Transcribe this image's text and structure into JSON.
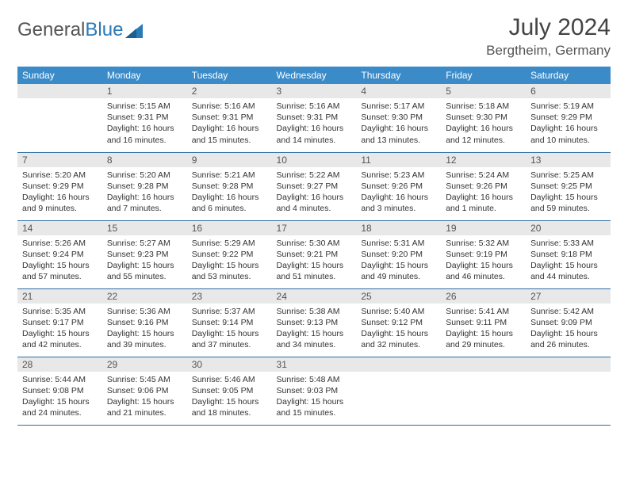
{
  "brand": {
    "part1": "General",
    "part2": "Blue"
  },
  "title": "July 2024",
  "location": "Bergtheim, Germany",
  "colors": {
    "header_bg": "#3b8bc9",
    "header_text": "#ffffff",
    "daynum_bg": "#e8e8e8",
    "row_border": "#2f6fa3",
    "logo_blue": "#2a7ab8"
  },
  "weekdays": [
    "Sunday",
    "Monday",
    "Tuesday",
    "Wednesday",
    "Thursday",
    "Friday",
    "Saturday"
  ],
  "weeks": [
    [
      {
        "empty": true
      },
      {
        "n": "1",
        "l1": "Sunrise: 5:15 AM",
        "l2": "Sunset: 9:31 PM",
        "l3": "Daylight: 16 hours",
        "l4": "and 16 minutes."
      },
      {
        "n": "2",
        "l1": "Sunrise: 5:16 AM",
        "l2": "Sunset: 9:31 PM",
        "l3": "Daylight: 16 hours",
        "l4": "and 15 minutes."
      },
      {
        "n": "3",
        "l1": "Sunrise: 5:16 AM",
        "l2": "Sunset: 9:31 PM",
        "l3": "Daylight: 16 hours",
        "l4": "and 14 minutes."
      },
      {
        "n": "4",
        "l1": "Sunrise: 5:17 AM",
        "l2": "Sunset: 9:30 PM",
        "l3": "Daylight: 16 hours",
        "l4": "and 13 minutes."
      },
      {
        "n": "5",
        "l1": "Sunrise: 5:18 AM",
        "l2": "Sunset: 9:30 PM",
        "l3": "Daylight: 16 hours",
        "l4": "and 12 minutes."
      },
      {
        "n": "6",
        "l1": "Sunrise: 5:19 AM",
        "l2": "Sunset: 9:29 PM",
        "l3": "Daylight: 16 hours",
        "l4": "and 10 minutes."
      }
    ],
    [
      {
        "n": "7",
        "l1": "Sunrise: 5:20 AM",
        "l2": "Sunset: 9:29 PM",
        "l3": "Daylight: 16 hours",
        "l4": "and 9 minutes."
      },
      {
        "n": "8",
        "l1": "Sunrise: 5:20 AM",
        "l2": "Sunset: 9:28 PM",
        "l3": "Daylight: 16 hours",
        "l4": "and 7 minutes."
      },
      {
        "n": "9",
        "l1": "Sunrise: 5:21 AM",
        "l2": "Sunset: 9:28 PM",
        "l3": "Daylight: 16 hours",
        "l4": "and 6 minutes."
      },
      {
        "n": "10",
        "l1": "Sunrise: 5:22 AM",
        "l2": "Sunset: 9:27 PM",
        "l3": "Daylight: 16 hours",
        "l4": "and 4 minutes."
      },
      {
        "n": "11",
        "l1": "Sunrise: 5:23 AM",
        "l2": "Sunset: 9:26 PM",
        "l3": "Daylight: 16 hours",
        "l4": "and 3 minutes."
      },
      {
        "n": "12",
        "l1": "Sunrise: 5:24 AM",
        "l2": "Sunset: 9:26 PM",
        "l3": "Daylight: 16 hours",
        "l4": "and 1 minute."
      },
      {
        "n": "13",
        "l1": "Sunrise: 5:25 AM",
        "l2": "Sunset: 9:25 PM",
        "l3": "Daylight: 15 hours",
        "l4": "and 59 minutes."
      }
    ],
    [
      {
        "n": "14",
        "l1": "Sunrise: 5:26 AM",
        "l2": "Sunset: 9:24 PM",
        "l3": "Daylight: 15 hours",
        "l4": "and 57 minutes."
      },
      {
        "n": "15",
        "l1": "Sunrise: 5:27 AM",
        "l2": "Sunset: 9:23 PM",
        "l3": "Daylight: 15 hours",
        "l4": "and 55 minutes."
      },
      {
        "n": "16",
        "l1": "Sunrise: 5:29 AM",
        "l2": "Sunset: 9:22 PM",
        "l3": "Daylight: 15 hours",
        "l4": "and 53 minutes."
      },
      {
        "n": "17",
        "l1": "Sunrise: 5:30 AM",
        "l2": "Sunset: 9:21 PM",
        "l3": "Daylight: 15 hours",
        "l4": "and 51 minutes."
      },
      {
        "n": "18",
        "l1": "Sunrise: 5:31 AM",
        "l2": "Sunset: 9:20 PM",
        "l3": "Daylight: 15 hours",
        "l4": "and 49 minutes."
      },
      {
        "n": "19",
        "l1": "Sunrise: 5:32 AM",
        "l2": "Sunset: 9:19 PM",
        "l3": "Daylight: 15 hours",
        "l4": "and 46 minutes."
      },
      {
        "n": "20",
        "l1": "Sunrise: 5:33 AM",
        "l2": "Sunset: 9:18 PM",
        "l3": "Daylight: 15 hours",
        "l4": "and 44 minutes."
      }
    ],
    [
      {
        "n": "21",
        "l1": "Sunrise: 5:35 AM",
        "l2": "Sunset: 9:17 PM",
        "l3": "Daylight: 15 hours",
        "l4": "and 42 minutes."
      },
      {
        "n": "22",
        "l1": "Sunrise: 5:36 AM",
        "l2": "Sunset: 9:16 PM",
        "l3": "Daylight: 15 hours",
        "l4": "and 39 minutes."
      },
      {
        "n": "23",
        "l1": "Sunrise: 5:37 AM",
        "l2": "Sunset: 9:14 PM",
        "l3": "Daylight: 15 hours",
        "l4": "and 37 minutes."
      },
      {
        "n": "24",
        "l1": "Sunrise: 5:38 AM",
        "l2": "Sunset: 9:13 PM",
        "l3": "Daylight: 15 hours",
        "l4": "and 34 minutes."
      },
      {
        "n": "25",
        "l1": "Sunrise: 5:40 AM",
        "l2": "Sunset: 9:12 PM",
        "l3": "Daylight: 15 hours",
        "l4": "and 32 minutes."
      },
      {
        "n": "26",
        "l1": "Sunrise: 5:41 AM",
        "l2": "Sunset: 9:11 PM",
        "l3": "Daylight: 15 hours",
        "l4": "and 29 minutes."
      },
      {
        "n": "27",
        "l1": "Sunrise: 5:42 AM",
        "l2": "Sunset: 9:09 PM",
        "l3": "Daylight: 15 hours",
        "l4": "and 26 minutes."
      }
    ],
    [
      {
        "n": "28",
        "l1": "Sunrise: 5:44 AM",
        "l2": "Sunset: 9:08 PM",
        "l3": "Daylight: 15 hours",
        "l4": "and 24 minutes."
      },
      {
        "n": "29",
        "l1": "Sunrise: 5:45 AM",
        "l2": "Sunset: 9:06 PM",
        "l3": "Daylight: 15 hours",
        "l4": "and 21 minutes."
      },
      {
        "n": "30",
        "l1": "Sunrise: 5:46 AM",
        "l2": "Sunset: 9:05 PM",
        "l3": "Daylight: 15 hours",
        "l4": "and 18 minutes."
      },
      {
        "n": "31",
        "l1": "Sunrise: 5:48 AM",
        "l2": "Sunset: 9:03 PM",
        "l3": "Daylight: 15 hours",
        "l4": "and 15 minutes."
      },
      {
        "empty": true
      },
      {
        "empty": true
      },
      {
        "empty": true
      }
    ]
  ]
}
